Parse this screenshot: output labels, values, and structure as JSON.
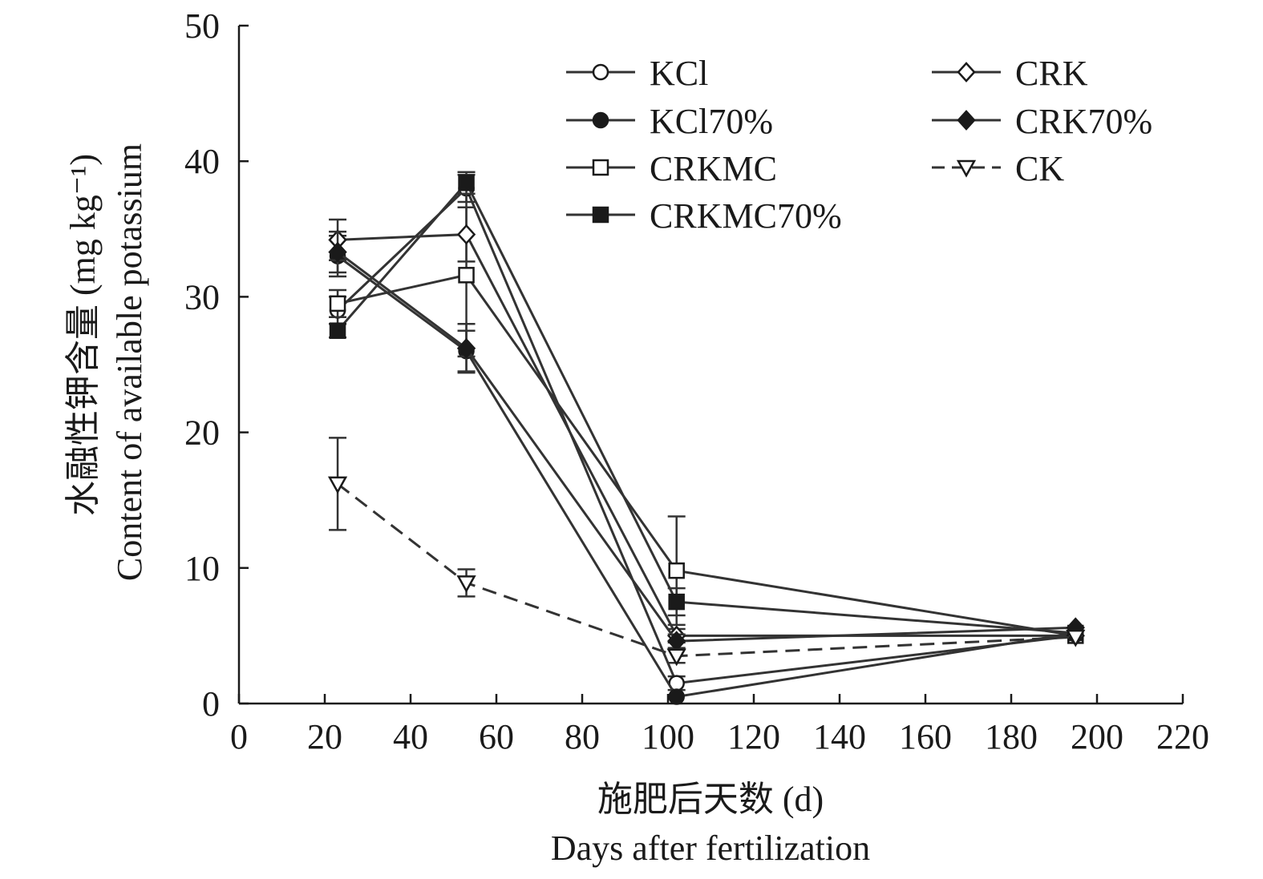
{
  "chart_data": {
    "type": "line",
    "title": "",
    "xlabel_cn": "施肥后天数 (d)",
    "xlabel_en": "Days after fertilization",
    "ylabel_cn": "水融性钾含量 (mg kg⁻¹)",
    "ylabel_en": "Content of available potassium",
    "xlim": [
      0,
      220
    ],
    "ylim": [
      0,
      50
    ],
    "x_ticks": [
      "0",
      "20",
      "40",
      "60",
      "80",
      "100",
      "120",
      "140",
      "160",
      "180",
      "200",
      "220"
    ],
    "y_ticks": [
      "0",
      "10",
      "20",
      "30",
      "40",
      "50"
    ],
    "grid": false,
    "legend_position": "top-right",
    "x": [
      23,
      53,
      102,
      195
    ],
    "series": [
      {
        "name": "KCl",
        "marker": "circle-open",
        "dash": "solid",
        "values": [
          29.0,
          38.0,
          1.5,
          5.0
        ],
        "errors": [
          1.0,
          1.0,
          0.5,
          0.3
        ]
      },
      {
        "name": "KCl70%",
        "marker": "circle-filled",
        "dash": "solid",
        "values": [
          33.0,
          26.0,
          0.5,
          5.2
        ],
        "errors": [
          1.5,
          1.5,
          0.3,
          0.3
        ]
      },
      {
        "name": "CRKMC",
        "marker": "square-open",
        "dash": "solid",
        "values": [
          29.5,
          31.6,
          9.8,
          5.0
        ],
        "errors": [
          1.0,
          6.0,
          4.0,
          0.3
        ]
      },
      {
        "name": "CRKMC70%",
        "marker": "square-filled",
        "dash": "solid",
        "values": [
          27.5,
          38.4,
          7.5,
          5.2
        ],
        "errors": [
          0.5,
          0.8,
          1.0,
          0.3
        ]
      },
      {
        "name": "CRK",
        "marker": "diamond-open",
        "dash": "solid",
        "values": [
          34.2,
          34.6,
          5.0,
          5.0
        ],
        "errors": [
          1.5,
          2.0,
          0.5,
          0.3
        ]
      },
      {
        "name": "CRK70%",
        "marker": "diamond-filled",
        "dash": "solid",
        "values": [
          33.3,
          26.2,
          4.6,
          5.6
        ],
        "errors": [
          1.5,
          1.8,
          0.5,
          0.3
        ]
      },
      {
        "name": "CK",
        "marker": "triangle-down-open",
        "dash": "dashed",
        "values": [
          16.2,
          8.9,
          3.5,
          4.9
        ],
        "errors": [
          3.4,
          1.0,
          0.5,
          0.3
        ]
      }
    ]
  }
}
